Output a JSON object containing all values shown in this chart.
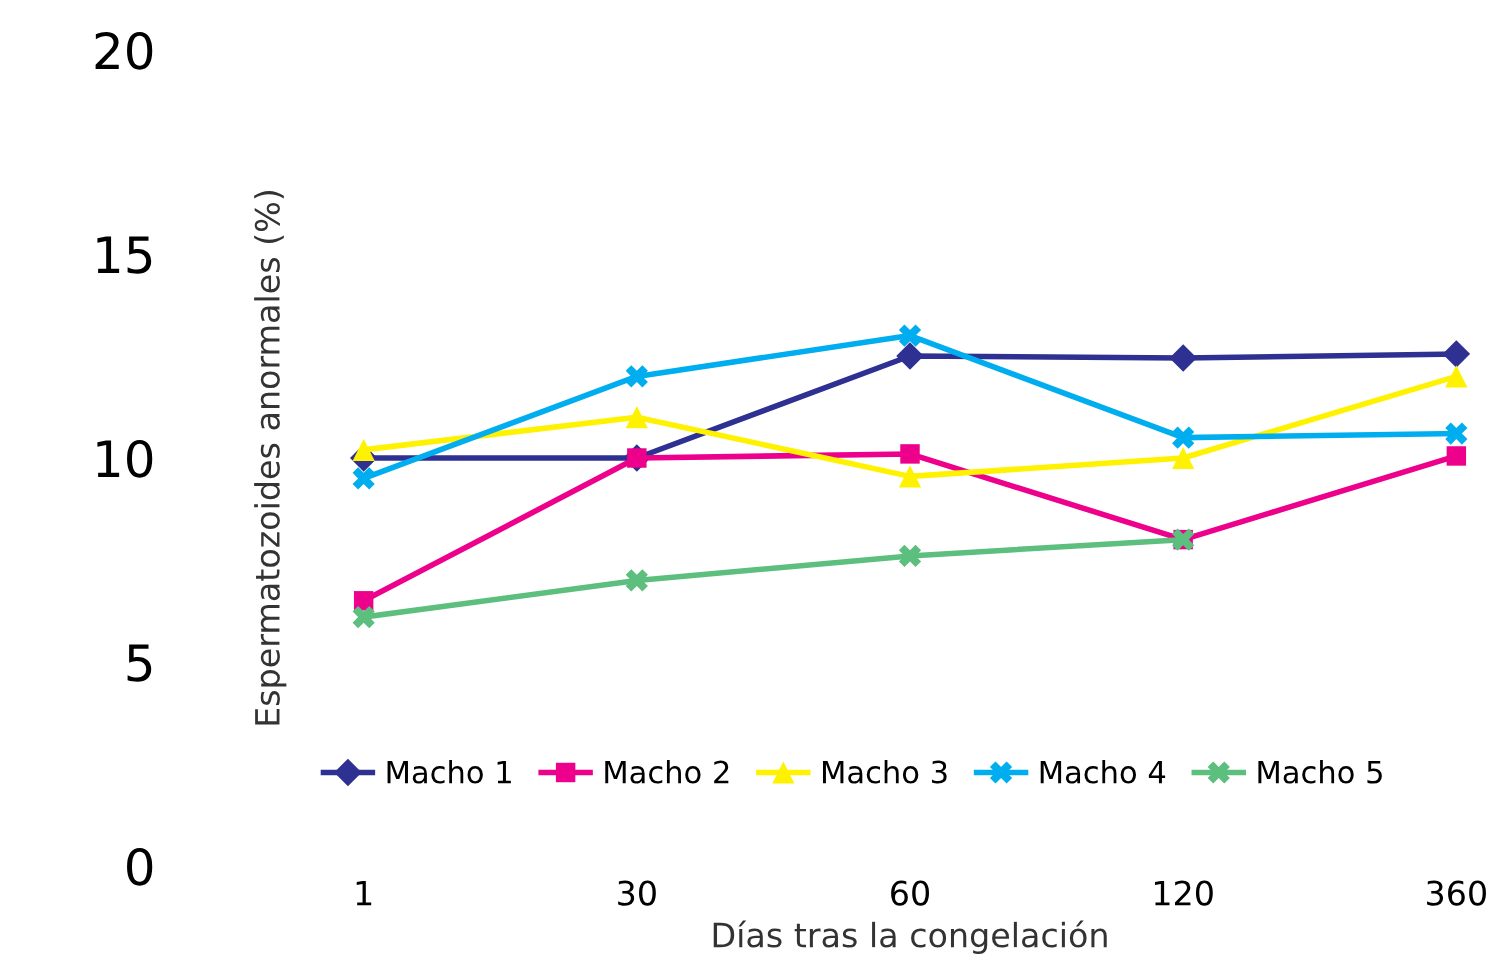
{
  "chart_data": {
    "type": "line",
    "xlabel": "Días tras la congelación",
    "ylabel": "Espermatozoides anormales (%)",
    "categories": [
      "1",
      "30",
      "60",
      "120",
      "360"
    ],
    "ylim": [
      0,
      20
    ],
    "yticks": [
      0,
      5,
      10,
      15,
      20
    ],
    "grid": false,
    "legend": "bottom",
    "series": [
      {
        "name": "Macho 1",
        "color": "#2e3192",
        "marker": "diamond",
        "values": [
          10,
          10,
          12.5,
          12.45,
          12.55
        ]
      },
      {
        "name": "Macho 2",
        "color": "#ec008c",
        "marker": "square",
        "values": [
          6.5,
          10,
          10.1,
          8.0,
          10.05
        ]
      },
      {
        "name": "Macho 3",
        "color": "#fff200",
        "marker": "triangle",
        "values": [
          10.2,
          11,
          9.55,
          10,
          12
        ]
      },
      {
        "name": "Macho 4",
        "color": "#00aeef",
        "marker": "cross",
        "values": [
          9.5,
          12,
          13,
          10.5,
          10.6
        ]
      },
      {
        "name": "Macho 5",
        "color": "#5cbf7e",
        "marker": "cross",
        "values": [
          6.1,
          7.0,
          7.6,
          8.0,
          null
        ]
      }
    ]
  }
}
